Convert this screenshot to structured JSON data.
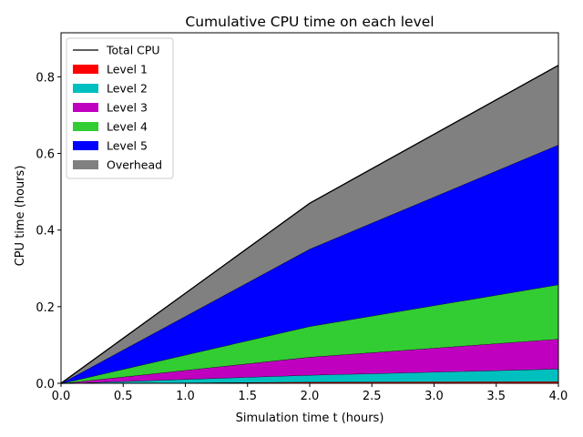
{
  "chart_data": {
    "type": "area",
    "stacked": true,
    "title": "Cumulative CPU time on each level",
    "xlabel": "Simulation time t (hours)",
    "ylabel": "CPU time (hours)",
    "xlim": [
      0,
      4
    ],
    "ylim": [
      0,
      0.915
    ],
    "xticks": [
      "0.0",
      "0.5",
      "1.0",
      "1.5",
      "2.0",
      "2.5",
      "3.0",
      "3.5",
      "4.0"
    ],
    "yticks": [
      "0.0",
      "0.2",
      "0.4",
      "0.6",
      "0.8"
    ],
    "grid": false,
    "legend_position": "top-left",
    "x": [
      0,
      2,
      4
    ],
    "series": [
      {
        "name": "Level 1",
        "color": "#ff0000",
        "values": [
          0,
          0.004,
          0.005
        ]
      },
      {
        "name": "Level 2",
        "color": "#00bfbf",
        "values": [
          0,
          0.018,
          0.033
        ]
      },
      {
        "name": "Level 3",
        "color": "#bf00bf",
        "values": [
          0,
          0.047,
          0.078
        ]
      },
      {
        "name": "Level 4",
        "color": "#32cd32",
        "values": [
          0,
          0.08,
          0.142
        ]
      },
      {
        "name": "Level 5",
        "color": "#0000ff",
        "values": [
          0,
          0.202,
          0.365
        ]
      },
      {
        "name": "Overhead",
        "color": "#808080",
        "values": [
          0,
          0.119,
          0.207
        ]
      }
    ],
    "total": {
      "name": "Total CPU",
      "color": "#000000",
      "values": [
        0,
        0.47,
        0.83
      ]
    }
  }
}
